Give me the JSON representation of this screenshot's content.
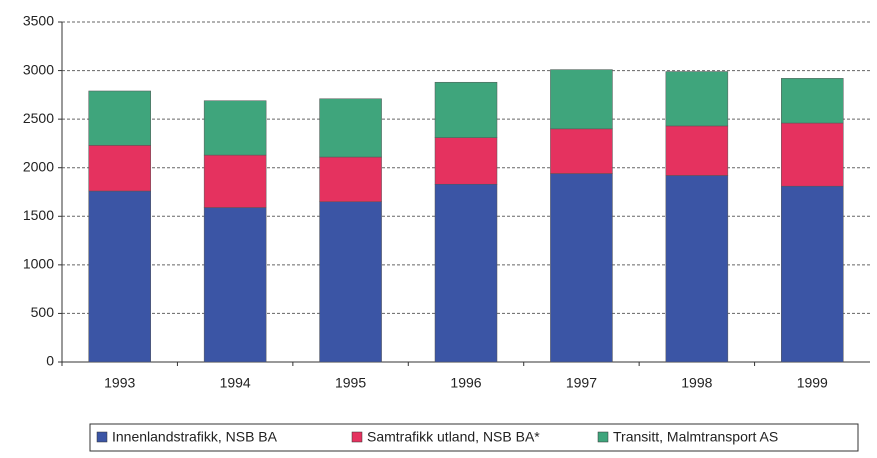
{
  "chart_data": {
    "type": "stacked_bar",
    "categories": [
      "1993",
      "1994",
      "1995",
      "1996",
      "1997",
      "1998",
      "1999"
    ],
    "series": [
      {
        "name": "Innenlandstrafikk, NSB BA",
        "color": "#3b55a5",
        "values": [
          1760,
          1590,
          1650,
          1830,
          1940,
          1920,
          1810
        ]
      },
      {
        "name": "Samtrafikk utland, NSB BA*",
        "color": "#e5325f",
        "values": [
          470,
          540,
          460,
          480,
          460,
          510,
          650
        ]
      },
      {
        "name": "Transitt, Malmtransport AS",
        "color": "#3fa57c",
        "values": [
          560,
          560,
          600,
          570,
          610,
          560,
          460
        ]
      }
    ],
    "ylim": [
      0,
      3500
    ],
    "yticks": [
      0,
      500,
      1000,
      1500,
      2000,
      2500,
      3000,
      3500
    ],
    "grid": true,
    "legend": "bottom"
  }
}
